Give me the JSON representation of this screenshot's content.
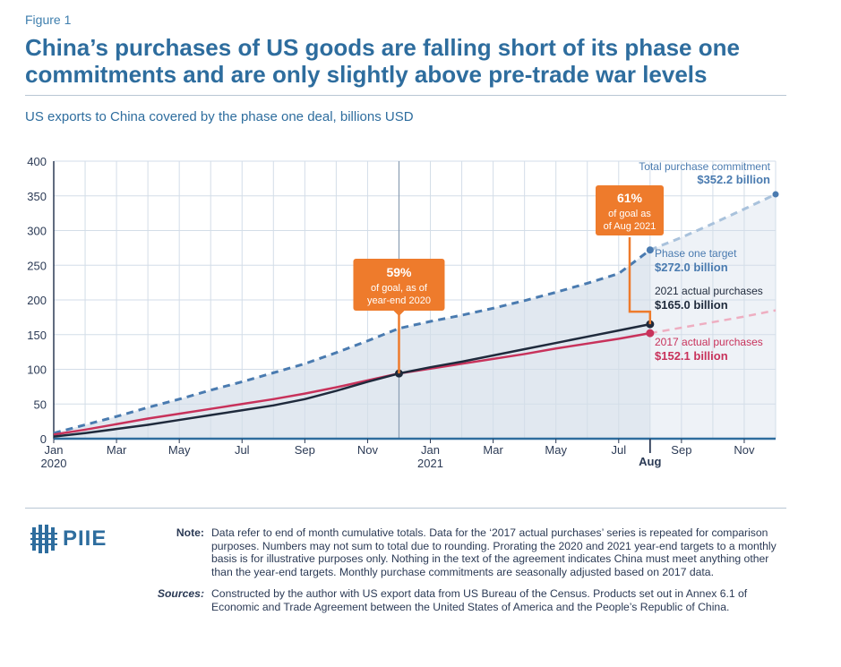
{
  "figure_label": "Figure 1",
  "title": "China’s purchases of US goods are falling short of its phase one commitments and are only slightly above pre-trade war levels",
  "subtitle": "US exports to China covered by the phase one deal, billions USD",
  "colors": {
    "accent": "#2e6d9e",
    "target": "#4a7bb0",
    "actual_2021": "#1f2a3c",
    "actual_2017": "#c8325b",
    "callout": "#ee7b2c",
    "area": "#e1e8f0"
  },
  "chart_data": {
    "type": "line",
    "x_ticks": [
      "Jan 2020",
      "Mar",
      "May",
      "Jul",
      "Sep",
      "Nov",
      "Jan 2021",
      "Mar",
      "May",
      "Jul",
      "Aug",
      "Sep",
      "Nov"
    ],
    "ylim": [
      0,
      400
    ],
    "y_ticks": [
      0,
      50,
      100,
      150,
      200,
      250,
      300,
      350,
      400
    ],
    "grid": true,
    "series": [
      {
        "name": "Phase one target",
        "x": [
          "2020-01",
          "2020-02",
          "2020-03",
          "2020-04",
          "2020-05",
          "2020-06",
          "2020-07",
          "2020-08",
          "2020-09",
          "2020-10",
          "2020-11",
          "2020-12",
          "2021-01",
          "2021-02",
          "2021-03",
          "2021-04",
          "2021-05",
          "2021-06",
          "2021-07",
          "2021-08",
          "2021-09",
          "2021-10",
          "2021-11",
          "2021-12"
        ],
        "values": [
          8,
          20,
          32,
          45,
          57,
          70,
          82,
          95,
          108,
          124,
          141,
          159,
          169,
          178,
          188,
          199,
          211,
          224,
          238,
          272,
          290,
          310,
          331,
          352.2
        ],
        "style": "dashed",
        "projected_from": "2021-08"
      },
      {
        "name": "2021 actual purchases",
        "x": [
          "2020-01",
          "2020-02",
          "2020-03",
          "2020-04",
          "2020-05",
          "2020-06",
          "2020-07",
          "2020-08",
          "2020-09",
          "2020-10",
          "2020-11",
          "2020-12",
          "2021-01",
          "2021-02",
          "2021-03",
          "2021-04",
          "2021-05",
          "2021-06",
          "2021-07",
          "2021-08"
        ],
        "values": [
          3,
          8,
          14,
          20,
          27,
          34,
          41,
          48,
          57,
          69,
          82,
          94,
          103,
          111,
          120,
          129,
          138,
          147,
          156,
          165.0
        ]
      },
      {
        "name": "2017 actual purchases",
        "x": [
          "2020-01",
          "2020-02",
          "2020-03",
          "2020-04",
          "2020-05",
          "2020-06",
          "2020-07",
          "2020-08",
          "2020-09",
          "2020-10",
          "2020-11",
          "2020-12",
          "2021-01",
          "2021-02",
          "2021-03",
          "2021-04",
          "2021-05",
          "2021-06",
          "2021-07",
          "2021-08",
          "2021-09",
          "2021-10",
          "2021-11",
          "2021-12"
        ],
        "values": [
          6,
          13,
          21,
          29,
          36,
          43,
          50,
          57,
          65,
          74,
          84,
          94,
          101,
          108,
          115,
          122,
          130,
          137,
          144,
          152.1,
          160,
          168,
          176,
          185
        ],
        "projected_from": "2021-08"
      }
    ],
    "annotations": {
      "total": {
        "label": "Total purchase commitment",
        "value": "$352.2 billion"
      },
      "target": {
        "label": "Phase one target",
        "value": "$272.0 billion"
      },
      "actual_2021": {
        "label": "2021 actual purchases",
        "value": "$165.0 billion"
      },
      "actual_2017": {
        "label": "2017 actual purchases",
        "value": "$152.1 billion"
      },
      "callout_2020": {
        "pct": "59%",
        "line1": "of goal, as of",
        "line2": "year-end 2020"
      },
      "callout_2021": {
        "pct": "61%",
        "line1": "of goal as",
        "line2": "of Aug 2021"
      }
    }
  },
  "logo_text": "PIIE",
  "note_label": "Note:",
  "note_text": "Data refer to end of month cumulative totals. Data for the ‘2017 actual purchases’ series is repeated for comparison purposes. Numbers may not sum to total due to rounding. Prorating the 2020 and 2021 year-end targets to a monthly basis is for illustrative purposes only. Nothing in the text of the agreement indicates China must meet anything other than the year-end targets. Monthly purchase commitments are seasonally adjusted based on 2017 data.",
  "sources_label": "Sources:",
  "sources_text": "Constructed by the author with US export data from US Bureau of the Census. Products set out in Annex 6.1 of Economic and Trade Agreement between the United States of America and the People’s Republic of China."
}
